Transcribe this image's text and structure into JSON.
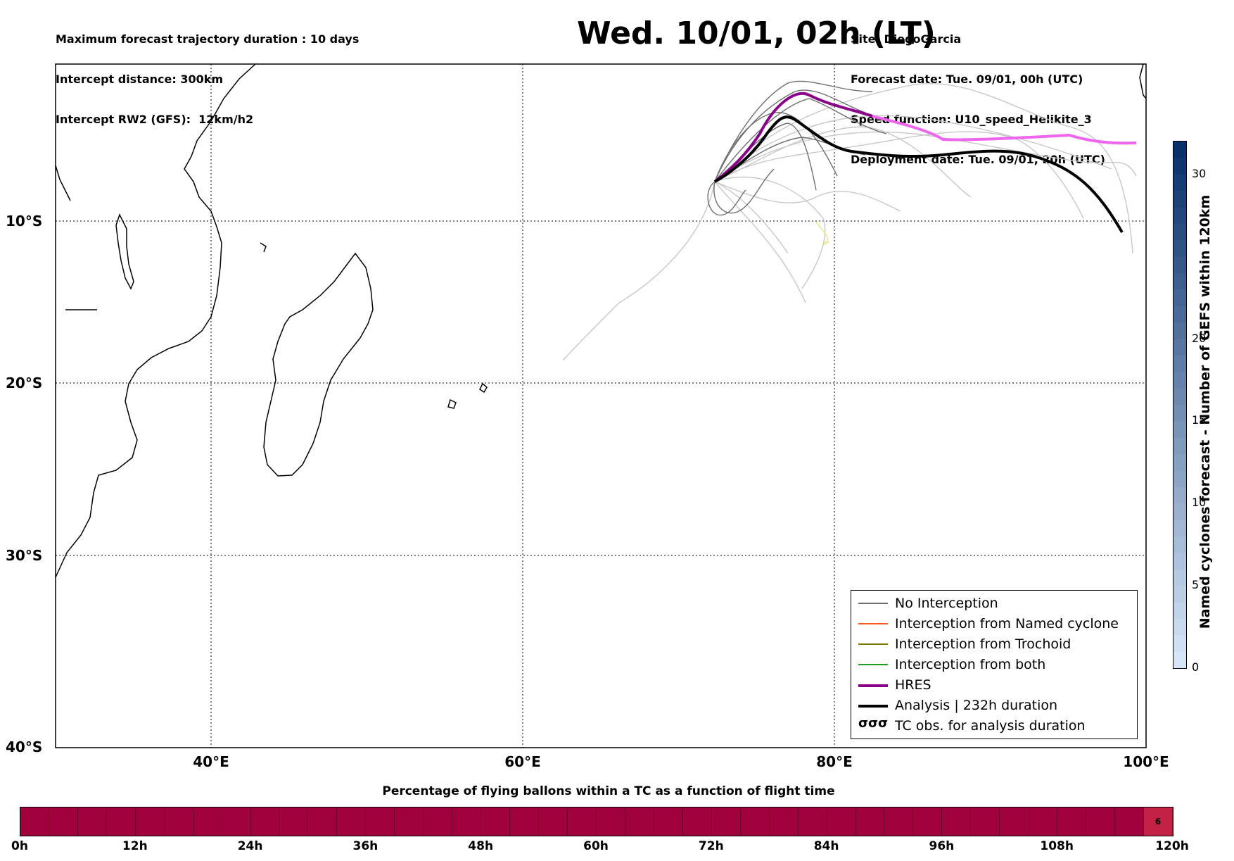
{
  "header": {
    "left_lines": [
      "Maximum forecast trajectory duration : 10 days",
      "Intercept distance: 300km",
      "Intercept RW2 (GFS):  12km/h2"
    ],
    "title": "Wed. 10/01, 02h (LT)",
    "right_lines": [
      "Site: DiegoGarcia",
      "Forecast date: Tue. 09/01, 00h (UTC)",
      "Speed function: U10_speed_Helikite_3",
      "Deployment date: Tue. 09/01, 20h (UTC)"
    ]
  },
  "map": {
    "lon_range": [
      30,
      100
    ],
    "lat_range": [
      -40,
      0
    ],
    "lat_labels": [
      "10°S",
      "20°S",
      "30°S",
      "40°S"
    ],
    "lon_labels": [
      "40°E",
      "60°E",
      "80°E",
      "100°E"
    ],
    "colors": {
      "no_interception": "#707070",
      "named_cyclone": "#ff5a1e",
      "trochoid": "#7a7a00",
      "both": "#1e9e1e",
      "hres": "#8b008b",
      "hres_extension": "#ee66ee",
      "analysis": "#000000",
      "ensemble_light": "#c8c8c8",
      "tc_obs": "#e6e680"
    }
  },
  "legend": {
    "items": [
      {
        "label": "No Interception",
        "color": "#707070",
        "style": "thin"
      },
      {
        "label": "Interception from Named cyclone",
        "color": "#ff5a1e",
        "style": "thin"
      },
      {
        "label": "Interception from Trochoid",
        "color": "#7a7a00",
        "style": "thin"
      },
      {
        "label": "Interception from both",
        "color": "#1e9e1e",
        "style": "thin"
      },
      {
        "label": "HRES",
        "color": "#8b008b",
        "style": "thick"
      },
      {
        "label": "Analysis | 232h duration",
        "color": "#000000",
        "style": "thick"
      },
      {
        "label": "TC obs. for analysis duration",
        "color": "#000000",
        "style": "glyph"
      }
    ],
    "tc_glyph": "σσσ"
  },
  "colorbar_vertical": {
    "label": "Named cyclones forecast - Number of GEFS within 120km",
    "ticks": [
      "0",
      "5",
      "10",
      "15",
      "20",
      "30"
    ],
    "tick_values": [
      0,
      5,
      10,
      15,
      20,
      30
    ],
    "max": 32
  },
  "colorbar_horizontal": {
    "title": "Percentage of flying ballons within a TC as a function of flight time",
    "tick_labels": [
      "0h",
      "12h",
      "24h",
      "36h",
      "48h",
      "60h",
      "72h",
      "84h",
      "96h",
      "108h",
      "120h"
    ],
    "last_segment_value": "6",
    "segment_color": "#a0003c",
    "last_segment_color": "#c32045"
  }
}
